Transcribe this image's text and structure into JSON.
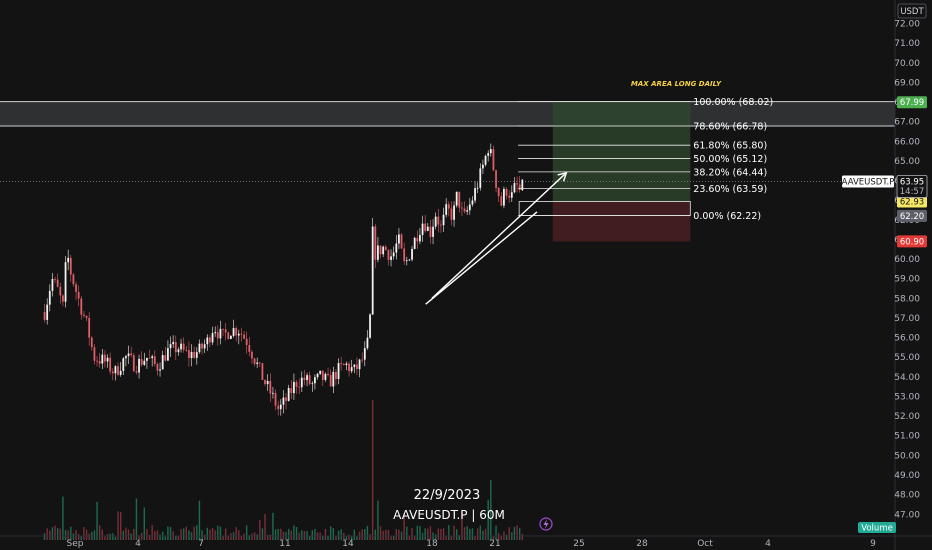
{
  "header": {
    "currency_badge": "USDT"
  },
  "watermark": {
    "date": "22/9/2023",
    "symbol": "AAVEUSDT.P | 60M"
  },
  "volume_badge": "Volume",
  "annotation": "MAX AREA LONG DAILY",
  "price_tags": {
    "symbol": "AAVEUSDT.P",
    "last": "63.95",
    "countdown": "14:57",
    "tp": "67.99",
    "entry": "62.93",
    "low": "62.20",
    "sl": "60.90"
  },
  "colors": {
    "background": "#131313",
    "up_candle": "#f2f2f2",
    "down_candle": "#e05e66",
    "target_zone": "#2f4a2f",
    "stop_zone": "#4a1f24",
    "tp_tag": "#4caf50",
    "entry_tag": "#f5e663",
    "sl_tag": "#e53935"
  },
  "chart_data": {
    "type": "candlestick",
    "symbol": "AAVEUSDT.P",
    "timeframe": "60M",
    "y_axis": {
      "range": [
        46.6,
        72.6
      ],
      "ticks": [
        "72.00",
        "71.00",
        "70.00",
        "69.00",
        "68.00",
        "67.00",
        "66.00",
        "65.00",
        "64.00",
        "63.00",
        "62.00",
        "61.00",
        "60.00",
        "59.00",
        "58.00",
        "57.00",
        "56.00",
        "55.00",
        "54.00",
        "53.00",
        "52.00",
        "51.00",
        "50.00",
        "49.00",
        "48.00",
        "47.00"
      ]
    },
    "x_axis": {
      "ticks": [
        {
          "label": "Sep",
          "day": 0
        },
        {
          "label": "4",
          "day": 3
        },
        {
          "label": "7",
          "day": 6
        },
        {
          "label": "11",
          "day": 10
        },
        {
          "label": "14",
          "day": 13
        },
        {
          "label": "18",
          "day": 17
        },
        {
          "label": "21",
          "day": 20
        },
        {
          "label": "25",
          "day": 24
        },
        {
          "label": "28",
          "day": 27
        },
        {
          "label": "Oct",
          "day": 30
        },
        {
          "label": "4",
          "day": 33
        },
        {
          "label": "9",
          "day": 38
        }
      ]
    },
    "price_path": [
      {
        "day": -1.45,
        "price": 57.3
      },
      {
        "day": -1.1,
        "price": 59.0
      },
      {
        "day": -0.85,
        "price": 58.5
      },
      {
        "day": -0.55,
        "price": 57.5
      },
      {
        "day": -0.4,
        "price": 60.5
      },
      {
        "day": -0.25,
        "price": 59.5
      },
      {
        "day": 0.1,
        "price": 58.2
      },
      {
        "day": 0.6,
        "price": 56.5
      },
      {
        "day": 0.9,
        "price": 55.0
      },
      {
        "day": 1.4,
        "price": 54.8
      },
      {
        "day": 1.9,
        "price": 54.2
      },
      {
        "day": 2.4,
        "price": 55.0
      },
      {
        "day": 2.9,
        "price": 54.6
      },
      {
        "day": 3.4,
        "price": 55.0
      },
      {
        "day": 3.9,
        "price": 54.5
      },
      {
        "day": 4.4,
        "price": 55.3
      },
      {
        "day": 4.9,
        "price": 55.5
      },
      {
        "day": 5.4,
        "price": 55.1
      },
      {
        "day": 5.9,
        "price": 55.3
      },
      {
        "day": 6.3,
        "price": 55.8
      },
      {
        "day": 6.6,
        "price": 56.6
      },
      {
        "day": 7.0,
        "price": 56.0
      },
      {
        "day": 7.4,
        "price": 56.4
      },
      {
        "day": 7.8,
        "price": 56.4
      },
      {
        "day": 8.2,
        "price": 55.8
      },
      {
        "day": 8.6,
        "price": 54.8
      },
      {
        "day": 9.0,
        "price": 53.8
      },
      {
        "day": 9.4,
        "price": 53.0
      },
      {
        "day": 9.7,
        "price": 52.3
      },
      {
        "day": 10.1,
        "price": 52.9
      },
      {
        "day": 10.5,
        "price": 53.7
      },
      {
        "day": 10.9,
        "price": 53.9
      },
      {
        "day": 11.3,
        "price": 53.6
      },
      {
        "day": 11.7,
        "price": 54.0
      },
      {
        "day": 12.1,
        "price": 53.7
      },
      {
        "day": 12.5,
        "price": 54.3
      },
      {
        "day": 12.9,
        "price": 54.6
      },
      {
        "day": 13.3,
        "price": 54.3
      },
      {
        "day": 13.6,
        "price": 54.7
      },
      {
        "day": 13.9,
        "price": 55.4
      },
      {
        "day": 14.05,
        "price": 57.0
      },
      {
        "day": 14.15,
        "price": 61.5
      },
      {
        "day": 14.3,
        "price": 60.3
      },
      {
        "day": 14.7,
        "price": 60.6
      },
      {
        "day": 15.1,
        "price": 60.1
      },
      {
        "day": 15.4,
        "price": 61.0
      },
      {
        "day": 15.7,
        "price": 59.6
      },
      {
        "day": 16.0,
        "price": 60.5
      },
      {
        "day": 16.3,
        "price": 61.3
      },
      {
        "day": 16.6,
        "price": 62.0
      },
      {
        "day": 16.9,
        "price": 61.3
      },
      {
        "day": 17.2,
        "price": 62.4
      },
      {
        "day": 17.4,
        "price": 61.5
      },
      {
        "day": 17.7,
        "price": 62.5
      },
      {
        "day": 18.0,
        "price": 62.2
      },
      {
        "day": 18.2,
        "price": 63.3
      },
      {
        "day": 18.5,
        "price": 62.0
      },
      {
        "day": 18.9,
        "price": 63.0
      },
      {
        "day": 19.2,
        "price": 63.9
      },
      {
        "day": 19.5,
        "price": 65.0
      },
      {
        "day": 19.7,
        "price": 65.8
      },
      {
        "day": 19.9,
        "price": 64.8
      },
      {
        "day": 20.1,
        "price": 63.6
      },
      {
        "day": 20.3,
        "price": 62.8
      },
      {
        "day": 20.5,
        "price": 63.6
      },
      {
        "day": 20.8,
        "price": 63.2
      },
      {
        "day": 21.0,
        "price": 63.8
      },
      {
        "day": 21.2,
        "price": 63.4
      },
      {
        "day": 21.4,
        "price": 63.9
      }
    ],
    "volume_range": [
      0,
      1
    ],
    "drawings": {
      "fibonacci_retracement": [
        {
          "ratio": "100.00%",
          "price": 68.02,
          "label": "100.00% (68.02)"
        },
        {
          "ratio": "78.60%",
          "price": 66.78,
          "label": "78.60% (66.78)"
        },
        {
          "ratio": "61.80%",
          "price": 65.8,
          "label": "61.80% (65.80)"
        },
        {
          "ratio": "50.00%",
          "price": 65.12,
          "label": "50.00% (65.12)"
        },
        {
          "ratio": "38.20%",
          "price": 64.44,
          "label": "38.20% (64.44)"
        },
        {
          "ratio": "23.60%",
          "price": 63.59,
          "label": "23.60% (63.59)"
        },
        {
          "ratio": "0.00%",
          "price": 62.22,
          "label": "0.00% (62.22)"
        }
      ],
      "long_position": {
        "entry": 62.93,
        "target": 67.99,
        "stop": 60.9
      },
      "resistance_zone": [
        66.78,
        68.02
      ],
      "trendline": {
        "from": {
          "day": 16.7,
          "price": 57.7
        },
        "to": {
          "day": 22.0,
          "price": 62.4
        }
      },
      "arrow": {
        "from": {
          "day": 17.0,
          "price": 58.0
        },
        "to": {
          "day": 23.4,
          "price": 64.4
        }
      },
      "last_price": 63.95
    }
  }
}
